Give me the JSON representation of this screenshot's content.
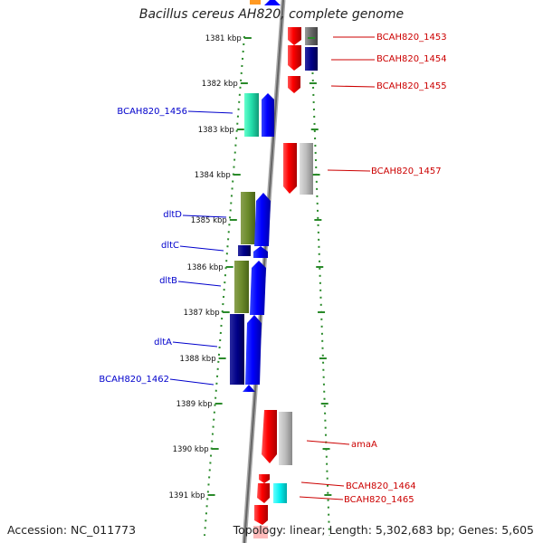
{
  "title": "Bacillus cereus AH820, complete genome",
  "accession": "Accession: NC_011773",
  "summary": "Topology: linear; Length: 5,302,683 bp; Genes: 5,605",
  "colors": {
    "label_left": "#0000cc",
    "label_right": "#cc0000",
    "ruler": "#2a8a2a",
    "backbone": "#888888"
  },
  "ticks": [
    {
      "label": "1381 kbp"
    },
    {
      "label": "1382 kbp"
    },
    {
      "label": "1383 kbp"
    },
    {
      "label": "1384 kbp"
    },
    {
      "label": "1385 kbp"
    },
    {
      "label": "1386 kbp"
    },
    {
      "label": "1387 kbp"
    },
    {
      "label": "1388 kbp"
    },
    {
      "label": "1389 kbp"
    },
    {
      "label": "1390 kbp"
    },
    {
      "label": "1391 kbp"
    }
  ],
  "gene_labels": [
    {
      "name": "BCAH820_1453",
      "side": "right"
    },
    {
      "name": "BCAH820_1454",
      "side": "right"
    },
    {
      "name": "BCAH820_1455",
      "side": "right"
    },
    {
      "name": "BCAH820_1456",
      "side": "left"
    },
    {
      "name": "BCAH820_1457",
      "side": "right"
    },
    {
      "name": "dltD",
      "side": "left"
    },
    {
      "name": "dltC",
      "side": "left"
    },
    {
      "name": "dltB",
      "side": "left"
    },
    {
      "name": "dltA",
      "side": "left"
    },
    {
      "name": "BCAH820_1462",
      "side": "left"
    },
    {
      "name": "amaA",
      "side": "right"
    },
    {
      "name": "BCAH820_1464",
      "side": "right"
    },
    {
      "name": "BCAH820_1465",
      "side": "right"
    }
  ]
}
